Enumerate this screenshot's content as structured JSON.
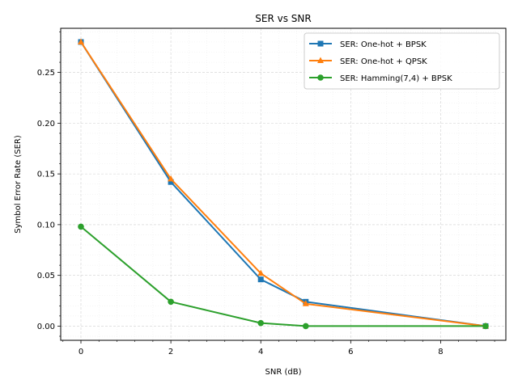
{
  "chart_data": {
    "type": "line",
    "title": "SER vs SNR",
    "xlabel": "SNR (dB)",
    "ylabel": "Symbol Error Rate (SER)",
    "xlim": [
      -0.45,
      9.45
    ],
    "ylim": [
      -0.014,
      0.2935
    ],
    "x_ticks": [
      0,
      2,
      4,
      6,
      8
    ],
    "x_tick_labels": [
      "0",
      "2",
      "4",
      "6",
      "8"
    ],
    "y_ticks": [
      0.0,
      0.05,
      0.1,
      0.15,
      0.2,
      0.25
    ],
    "y_tick_labels": [
      "0.00",
      "0.05",
      "0.10",
      "0.15",
      "0.20",
      "0.25"
    ],
    "grid": true,
    "minor_grid": true,
    "legend_position": "top-right",
    "series": [
      {
        "name": "SER: One-hot + BPSK",
        "color": "#1f77b4",
        "marker": "square",
        "x": [
          0,
          2,
          4,
          5,
          9
        ],
        "y": [
          0.28,
          0.142,
          0.046,
          0.024,
          0.0
        ]
      },
      {
        "name": "SER: One-hot + QPSK",
        "color": "#ff7f0e",
        "marker": "triangle",
        "x": [
          0,
          2,
          4,
          5,
          9
        ],
        "y": [
          0.28,
          0.145,
          0.052,
          0.022,
          0.0
        ]
      },
      {
        "name": "SER: Hamming(7,4) + BPSK",
        "color": "#2ca02c",
        "marker": "circle",
        "x": [
          0,
          2,
          4,
          5,
          9
        ],
        "y": [
          0.098,
          0.024,
          0.003,
          0.0,
          0.0
        ]
      }
    ]
  }
}
